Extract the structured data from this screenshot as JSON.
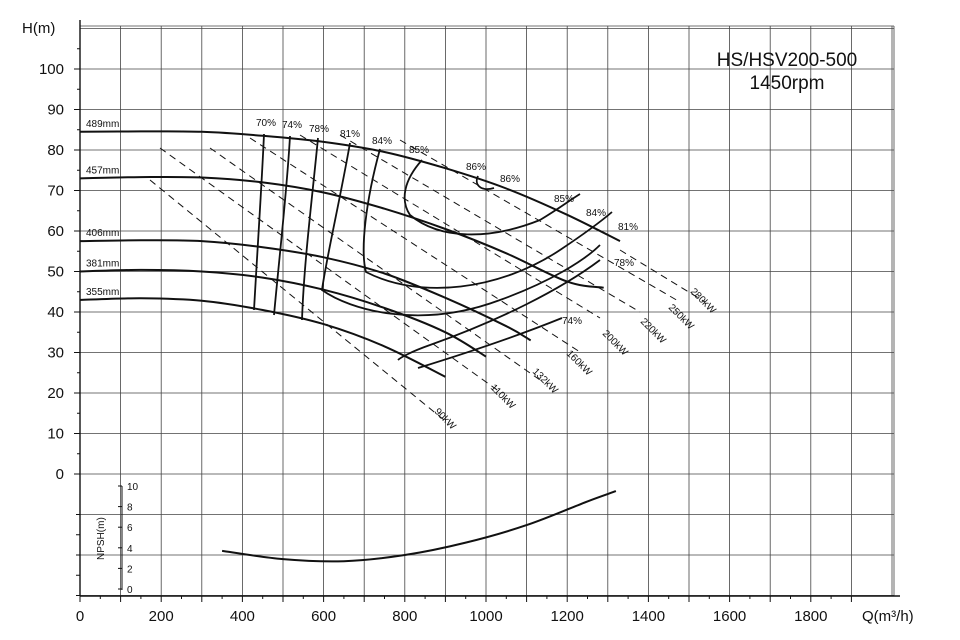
{
  "chart_data": {
    "type": "line",
    "title": "HS/HSV200-500",
    "subtitle": "1450rpm",
    "xlabel": "Q(m³/h)",
    "ylabel": "H(m)",
    "xlim": [
      0,
      2000
    ],
    "ylim": [
      0,
      110
    ],
    "x_ticks": [
      "0",
      "200",
      "400",
      "600",
      "800",
      "1000",
      "1200",
      "1400",
      "1600",
      "1800"
    ],
    "y_ticks": [
      "0",
      "10",
      "20",
      "30",
      "40",
      "50",
      "60",
      "70",
      "80",
      "90",
      "100"
    ],
    "grid": true,
    "series": [
      {
        "name": "489mm",
        "x": [
          0,
          150,
          300,
          450,
          600,
          750,
          900,
          1050,
          1200,
          1330
        ],
        "y": [
          84.5,
          84.6,
          84.5,
          83.5,
          82,
          79.5,
          75.5,
          70.5,
          64,
          57.5
        ]
      },
      {
        "name": "457mm",
        "x": [
          0,
          150,
          300,
          450,
          600,
          750,
          900,
          1050,
          1200,
          1290
        ],
        "y": [
          73,
          73.3,
          73.2,
          72,
          69.5,
          65.5,
          60.5,
          54.5,
          47.5,
          46
        ]
      },
      {
        "name": "406mm",
        "x": [
          0,
          150,
          300,
          450,
          600,
          750,
          900,
          1050,
          1110
        ],
        "y": [
          57.5,
          57.7,
          57.5,
          56,
          53.5,
          49.5,
          43.5,
          36.5,
          33
        ]
      },
      {
        "name": "381mm",
        "x": [
          0,
          150,
          300,
          450,
          600,
          750,
          900,
          1000
        ],
        "y": [
          50,
          50.4,
          50,
          48.5,
          45.5,
          41,
          35,
          29
        ]
      },
      {
        "name": "355mm",
        "x": [
          0,
          150,
          300,
          450,
          600,
          750,
          900
        ],
        "y": [
          43,
          43.4,
          42.8,
          40.5,
          37,
          31.5,
          24
        ]
      }
    ],
    "efficiency_labels": [
      "70%",
      "74%",
      "78%",
      "81%",
      "84%",
      "85%",
      "86%",
      "86%",
      "85%",
      "84%",
      "81%",
      "78%",
      "74%"
    ],
    "power_labels": [
      "90kW",
      "110kW",
      "132kW",
      "160kW",
      "200kW",
      "220kW",
      "250kW",
      "280kW"
    ],
    "npsh": {
      "ylabel": "NPSH(m)",
      "y_ticks": [
        "0",
        "2",
        "4",
        "6",
        "8",
        "10"
      ],
      "ylim": [
        0,
        10
      ],
      "x": [
        350,
        500,
        650,
        800,
        950,
        1100,
        1250,
        1320
      ],
      "y": [
        3.7,
        2.9,
        2.7,
        3.3,
        4.5,
        6.2,
        8.5,
        9.5
      ]
    }
  }
}
